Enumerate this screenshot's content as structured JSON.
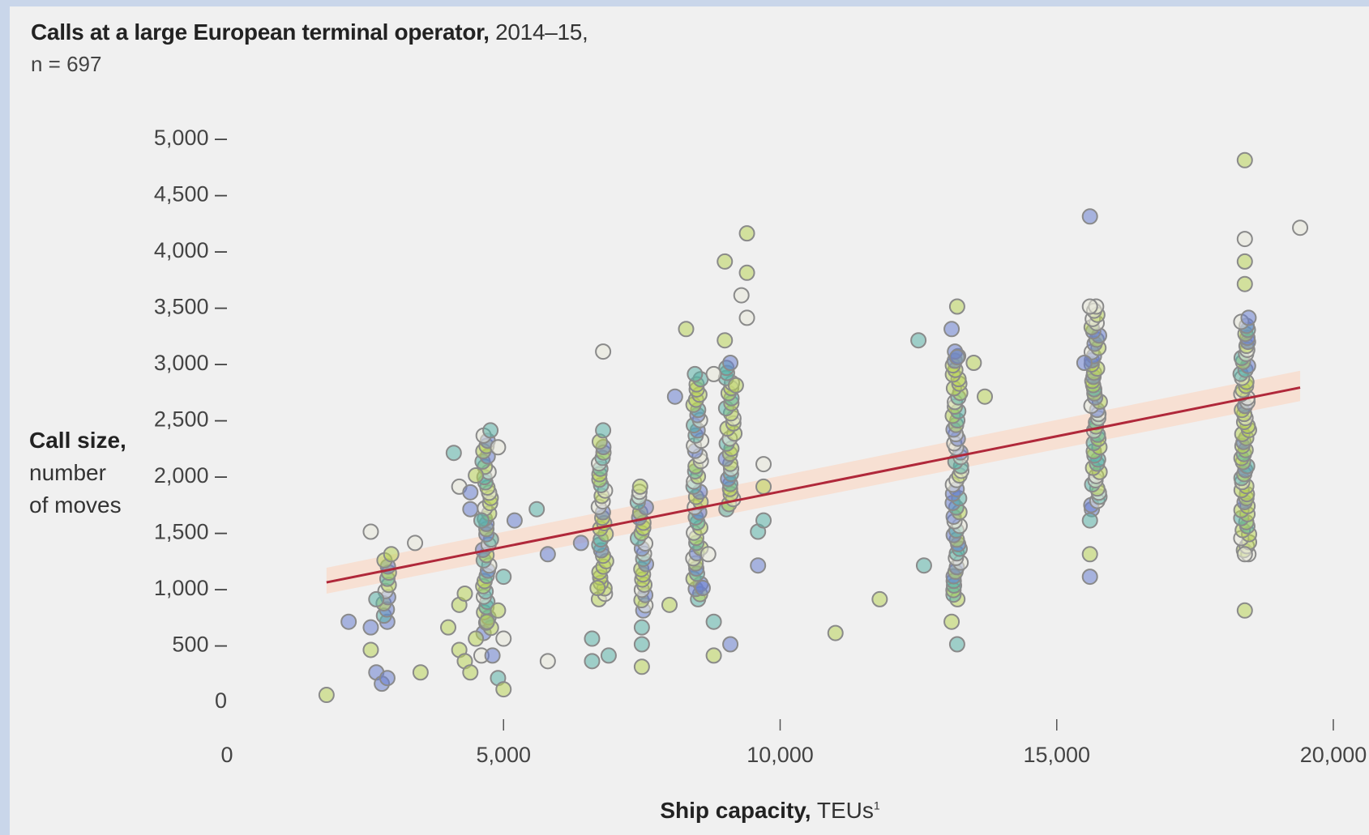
{
  "title": {
    "bold": "Calls at a large European terminal operator,",
    "rest": " 2014–15,"
  },
  "subtitle": "n = 697",
  "ylabel": {
    "line1": "Call size,",
    "line2": "number",
    "line3": "of moves"
  },
  "xlabel": {
    "bold": "Ship capacity,",
    "rest": " TEUs",
    "sup": "1"
  },
  "colors": {
    "background": "#c9d6ea",
    "panel": "#f0f0f0",
    "trend": "#b0283a",
    "band": "#f9dccc",
    "marker_gray": "#8a8a8a",
    "marker_green": "#b9d45a",
    "marker_teal": "#5bb3a8",
    "marker_blue": "#6a7fd0"
  },
  "chart_data": {
    "type": "scatter",
    "title": "Calls at a large European terminal operator, 2014–15",
    "subtitle": "n = 697",
    "xlabel": "Ship capacity, TEUs",
    "ylabel": "Call size, number of moves",
    "xlim": [
      0,
      20000
    ],
    "ylim": [
      0,
      5000
    ],
    "x_ticks": [
      0,
      5000,
      10000,
      15000,
      20000
    ],
    "x_tick_labels": [
      "0",
      "5,000",
      "10,000",
      "15,000",
      "20,000"
    ],
    "y_ticks": [
      0,
      500,
      1000,
      1500,
      2000,
      2500,
      3000,
      3500,
      4000,
      4500,
      5000
    ],
    "y_tick_labels": [
      "0",
      "500 –",
      "1,000 –",
      "1,500 –",
      "2,000 –",
      "2,500 –",
      "3,000 –",
      "3,500 –",
      "4,000 –",
      "4,500 –",
      "5,000 –"
    ],
    "grid": false,
    "trend_line": {
      "x": [
        1800,
        19400
      ],
      "y": [
        1050,
        2780
      ]
    },
    "confidence_band": {
      "x": [
        1800,
        19400
      ],
      "y_low": [
        950,
        2660
      ],
      "y_high": [
        1180,
        2930
      ]
    },
    "clusters": [
      {
        "x": 2900,
        "y_min": 700,
        "y_max": 1300,
        "n": 12
      },
      {
        "x": 4700,
        "y_min": 600,
        "y_max": 2400,
        "n": 40
      },
      {
        "x": 6800,
        "y_min": 900,
        "y_max": 2300,
        "n": 30
      },
      {
        "x": 7500,
        "y_min": 800,
        "y_max": 1900,
        "n": 25
      },
      {
        "x": 8500,
        "y_min": 900,
        "y_max": 2900,
        "n": 45
      },
      {
        "x": 9100,
        "y_min": 1700,
        "y_max": 3000,
        "n": 30
      },
      {
        "x": 13200,
        "y_min": 900,
        "y_max": 3100,
        "n": 55
      },
      {
        "x": 15700,
        "y_min": 1700,
        "y_max": 3500,
        "n": 50
      },
      {
        "x": 18400,
        "y_min": 1300,
        "y_max": 3400,
        "n": 60
      }
    ],
    "points": [
      [
        1800,
        50
      ],
      [
        2200,
        700
      ],
      [
        2600,
        1500
      ],
      [
        2700,
        900
      ],
      [
        2600,
        650
      ],
      [
        2600,
        450
      ],
      [
        2700,
        250
      ],
      [
        2800,
        150
      ],
      [
        2900,
        200
      ],
      [
        3500,
        250
      ],
      [
        3400,
        1400
      ],
      [
        4000,
        650
      ],
      [
        4200,
        850
      ],
      [
        4300,
        950
      ],
      [
        4200,
        450
      ],
      [
        4300,
        350
      ],
      [
        4400,
        250
      ],
      [
        4500,
        550
      ],
      [
        4600,
        400
      ],
      [
        4700,
        700
      ],
      [
        4800,
        400
      ],
      [
        4900,
        200
      ],
      [
        5000,
        100
      ],
      [
        5000,
        550
      ],
      [
        4900,
        800
      ],
      [
        5000,
        1100
      ],
      [
        4100,
        2200
      ],
      [
        4200,
        1900
      ],
      [
        4400,
        1700
      ],
      [
        4400,
        1850
      ],
      [
        4600,
        1600
      ],
      [
        4500,
        2000
      ],
      [
        4900,
        2250
      ],
      [
        5200,
        1600
      ],
      [
        5600,
        1700
      ],
      [
        5800,
        1300
      ],
      [
        5800,
        350
      ],
      [
        6400,
        1400
      ],
      [
        6600,
        350
      ],
      [
        6600,
        550
      ],
      [
        6900,
        400
      ],
      [
        6800,
        2400
      ],
      [
        6800,
        3100
      ],
      [
        6700,
        1000
      ],
      [
        7500,
        300
      ],
      [
        7500,
        500
      ],
      [
        7500,
        650
      ],
      [
        8000,
        850
      ],
      [
        8100,
        2700
      ],
      [
        8300,
        3300
      ],
      [
        8600,
        1000
      ],
      [
        8700,
        1300
      ],
      [
        8800,
        700
      ],
      [
        8800,
        400
      ],
      [
        9100,
        500
      ],
      [
        9000,
        3900
      ],
      [
        9400,
        3800
      ],
      [
        9400,
        4150
      ],
      [
        9400,
        3400
      ],
      [
        9300,
        3600
      ],
      [
        9200,
        2800
      ],
      [
        9000,
        3200
      ],
      [
        8800,
        2900
      ],
      [
        9700,
        2100
      ],
      [
        9700,
        1900
      ],
      [
        9600,
        1500
      ],
      [
        9600,
        1200
      ],
      [
        9700,
        1600
      ],
      [
        11000,
        600
      ],
      [
        11800,
        900
      ],
      [
        12500,
        3200
      ],
      [
        12600,
        1200
      ],
      [
        13100,
        700
      ],
      [
        13200,
        500
      ],
      [
        13100,
        3300
      ],
      [
        13200,
        3500
      ],
      [
        13500,
        3000
      ],
      [
        13700,
        2700
      ],
      [
        13200,
        3050
      ],
      [
        15600,
        4300
      ],
      [
        15600,
        1600
      ],
      [
        15600,
        1300
      ],
      [
        15600,
        1100
      ],
      [
        15600,
        3500
      ],
      [
        15500,
        3000
      ],
      [
        18400,
        4800
      ],
      [
        18400,
        4100
      ],
      [
        18400,
        3900
      ],
      [
        18400,
        3700
      ],
      [
        18400,
        1300
      ],
      [
        18400,
        800
      ],
      [
        19400,
        4200
      ]
    ]
  }
}
